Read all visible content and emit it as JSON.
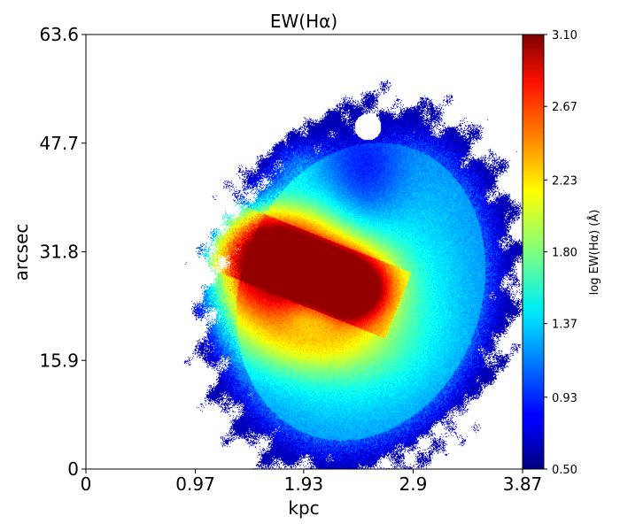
{
  "chart_data": {
    "type": "heatmap",
    "title": "EW(Hα)",
    "xlabel": "kpc",
    "ylabel": "arcsec",
    "xlim": [
      0,
      3.87
    ],
    "ylim": [
      0,
      63.6
    ],
    "x_ticks": [
      0,
      0.97,
      1.93,
      2.9,
      3.87
    ],
    "x_tick_labels": [
      "0",
      "0.97",
      "1.93",
      "2.9",
      "3.87"
    ],
    "y_ticks": [
      0,
      15.9,
      31.8,
      47.7,
      63.6
    ],
    "y_tick_labels": [
      "0",
      "15.9",
      "31.8",
      "47.7",
      "63.6"
    ],
    "colorscale": "jet",
    "colorbar": {
      "label": "log EW(Hα) (Å)",
      "range": [
        0.5,
        3.1
      ],
      "ticks": [
        0.5,
        0.93,
        1.37,
        1.8,
        2.23,
        2.67,
        3.1
      ],
      "tick_labels": [
        "0.50",
        "0.93",
        "1.37",
        "1.80",
        "2.23",
        "2.67",
        "3.10"
      ]
    },
    "grid": false
  }
}
